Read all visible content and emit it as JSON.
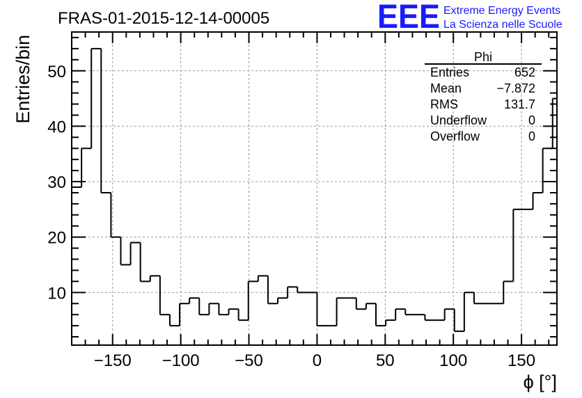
{
  "colors": {
    "line": "#000000",
    "grid": "#9a9a9a",
    "logo": "#1a1aff",
    "background": "#ffffff"
  },
  "chart_data": {
    "type": "histogram",
    "title": "FRAS-01-2015-12-14-00005",
    "xlabel": "ϕ [°]",
    "ylabel": "Entries/bin",
    "xlim": [
      -180,
      176
    ],
    "ylim": [
      0.5,
      57
    ],
    "grid": true,
    "bin_width": 7.2,
    "x_start": -180,
    "values": [
      29,
      36,
      54,
      28,
      20,
      15,
      19,
      12,
      13,
      6,
      4,
      8,
      9,
      6,
      8,
      6,
      7,
      5,
      12,
      13,
      8,
      9,
      11,
      10,
      10,
      4,
      4,
      9,
      9,
      7,
      8,
      4,
      5,
      7,
      6,
      6,
      5,
      5,
      7,
      3,
      10,
      8,
      8,
      8,
      12,
      25,
      25,
      28,
      36,
      45
    ],
    "x_ticks": [
      -150,
      -100,
      -50,
      0,
      50,
      100,
      150
    ],
    "x_tick_labels": [
      "−150",
      "−100",
      "−50",
      "0",
      "50",
      "100",
      "150"
    ],
    "y_ticks": [
      10,
      20,
      30,
      40,
      50
    ],
    "y_tick_labels": [
      "10",
      "20",
      "30",
      "40",
      "50"
    ]
  },
  "stats_box": {
    "title": "Phi",
    "rows": [
      {
        "label": "Entries",
        "value": "652"
      },
      {
        "label": "Mean",
        "value": "−7.872"
      },
      {
        "label": "RMS",
        "value": "131.7"
      },
      {
        "label": "Underflow",
        "value": "0"
      },
      {
        "label": "Overflow",
        "value": "0"
      }
    ]
  },
  "logo": {
    "mark": "EEE",
    "line1": "Extreme Energy Events",
    "line2": "La Scienza nelle Scuole"
  }
}
